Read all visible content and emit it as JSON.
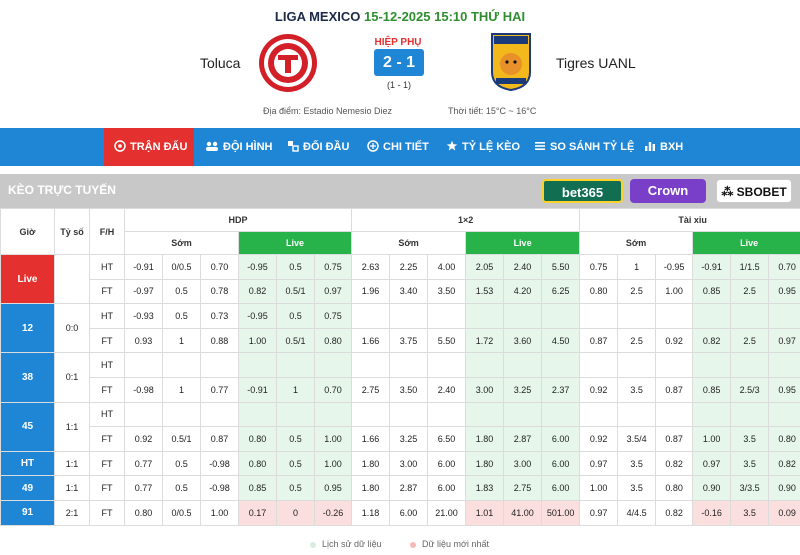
{
  "match": {
    "league": "LIGA MEXICO",
    "datetime": "15-12-2025 15:10 THỨ HAI",
    "status": "HIỆP PHỤ",
    "score": "2 - 1",
    "ht_score": "(1 - 1)",
    "home": "Toluca",
    "away": "Tigres UANL",
    "venue": "Địa điểm: Estadio Nemesio Diez",
    "weather": "Thời tiết: 15°C ~ 16°C",
    "colors": {
      "accent": "#1f86d6",
      "live_red": "#e53030",
      "live_green": "#28b34a",
      "highlight_green": "#e7f6ea",
      "highlight_pink": "#fbdede"
    }
  },
  "nav": [
    {
      "label": "TRẬN ĐẤU",
      "icon": "soccer-ball-icon",
      "active": true
    },
    {
      "label": "ĐỘI HÌNH",
      "icon": "team-icon",
      "active": false
    },
    {
      "label": "ĐỐI ĐẦU",
      "icon": "versus-icon",
      "active": false
    },
    {
      "label": "CHI TIẾT",
      "icon": "detail-icon",
      "active": false
    },
    {
      "label": "TỶ LỆ KÈO",
      "icon": "star-icon",
      "active": false
    },
    {
      "label": "SO SÁNH TỶ LỆ",
      "icon": "compare-icon",
      "active": false
    },
    {
      "label": "BXH",
      "icon": "bar-chart-icon",
      "active": false
    }
  ],
  "odds": {
    "title": "KÈO TRỰC TUYẾN",
    "bookmakers": [
      "bet365",
      "Crown",
      "SBOBET"
    ],
    "headers": {
      "time": "Giờ",
      "score": "Tỷ số",
      "fh": "F/H",
      "hdp": "HDP",
      "x12": "1×2",
      "tx": "Tài xỉu",
      "early": "Sớm",
      "live": "Live"
    },
    "rows": [
      {
        "time": "Live",
        "score": "",
        "fh": "HT",
        "cells": [
          "-0.91",
          "0/0.5",
          "0.70",
          "-0.95",
          "0.5",
          "0.75",
          "2.63",
          "2.25",
          "4.00",
          "2.05",
          "2.40",
          "5.50",
          "0.75",
          "1",
          "-0.95",
          "-0.91",
          "1/1.5",
          "0.70"
        ]
      },
      {
        "time": "",
        "score": "",
        "fh": "FT",
        "cells": [
          "-0.97",
          "0.5",
          "0.78",
          "0.82",
          "0.5/1",
          "0.97",
          "1.96",
          "3.40",
          "3.50",
          "1.53",
          "4.20",
          "6.25",
          "0.80",
          "2.5",
          "1.00",
          "0.85",
          "2.5",
          "0.95"
        ]
      },
      {
        "time": "12",
        "score": "0:0",
        "fh": "HT",
        "cells": [
          "-0.93",
          "0.5",
          "0.73",
          "-0.95",
          "0.5",
          "0.75",
          "",
          "",
          "",
          "",
          "",
          "",
          "",
          "",
          "",
          "",
          "",
          ""
        ]
      },
      {
        "time": "",
        "score": "",
        "fh": "FT",
        "cells": [
          "0.93",
          "1",
          "0.88",
          "1.00",
          "0.5/1",
          "0.80",
          "1.66",
          "3.75",
          "5.50",
          "1.72",
          "3.60",
          "4.50",
          "0.87",
          "2.5",
          "0.92",
          "0.82",
          "2.5",
          "0.97"
        ]
      },
      {
        "time": "38",
        "score": "0:1",
        "fh": "HT",
        "cells": [
          "",
          "",
          "",
          "",
          "",
          "",
          "",
          "",
          "",
          "",
          "",
          "",
          "",
          "",
          "",
          "",
          "",
          ""
        ]
      },
      {
        "time": "",
        "score": "",
        "fh": "FT",
        "cells": [
          "-0.98",
          "1",
          "0.77",
          "-0.91",
          "1",
          "0.70",
          "2.75",
          "3.50",
          "2.40",
          "3.00",
          "3.25",
          "2.37",
          "0.92",
          "3.5",
          "0.87",
          "0.85",
          "2.5/3",
          "0.95"
        ]
      },
      {
        "time": "45",
        "score": "1:1",
        "fh": "HT",
        "cells": [
          "",
          "",
          "",
          "",
          "",
          "",
          "",
          "",
          "",
          "",
          "",
          "",
          "",
          "",
          "",
          "",
          "",
          ""
        ]
      },
      {
        "time": "",
        "score": "",
        "fh": "FT",
        "cells": [
          "0.92",
          "0.5/1",
          "0.87",
          "0.80",
          "0.5",
          "1.00",
          "1.66",
          "3.25",
          "6.50",
          "1.80",
          "2.87",
          "6.00",
          "0.92",
          "3.5/4",
          "0.87",
          "1.00",
          "3.5",
          "0.80"
        ]
      },
      {
        "time": "HT",
        "score": "1:1",
        "fh": "FT",
        "cells": [
          "0.77",
          "0.5",
          "-0.98",
          "0.80",
          "0.5",
          "1.00",
          "1.80",
          "3.00",
          "6.00",
          "1.80",
          "3.00",
          "6.00",
          "0.97",
          "3.5",
          "0.82",
          "0.97",
          "3.5",
          "0.82"
        ]
      },
      {
        "time": "49",
        "score": "1:1",
        "fh": "FT",
        "cells": [
          "0.77",
          "0.5",
          "-0.98",
          "0.85",
          "0.5",
          "0.95",
          "1.80",
          "2.87",
          "6.00",
          "1.83",
          "2.75",
          "6.00",
          "1.00",
          "3.5",
          "0.80",
          "0.90",
          "3/3.5",
          "0.90"
        ]
      },
      {
        "time": "91",
        "score": "2:1",
        "fh": "FT",
        "cells": [
          "0.80",
          "0/0.5",
          "1.00",
          "0.17",
          "0",
          "-0.26",
          "1.18",
          "6.00",
          "21.00",
          "1.01",
          "41.00",
          "501.00",
          "0.97",
          "4/4.5",
          "0.82",
          "-0.16",
          "3.5",
          "0.09"
        ]
      }
    ]
  },
  "legend": {
    "history": "Lịch sử dữ liệu",
    "latest": "Dữ liệu mới nhất"
  }
}
